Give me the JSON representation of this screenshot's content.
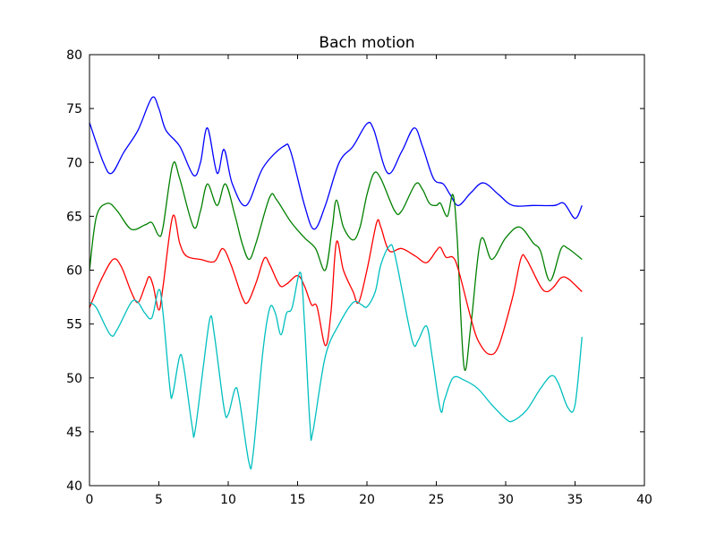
{
  "chart_data": {
    "type": "line",
    "title": "Bach motion",
    "xlabel": "",
    "ylabel": "",
    "xlim": [
      0,
      40
    ],
    "ylim": [
      40,
      80
    ],
    "xticks": [
      "0",
      "5",
      "10",
      "15",
      "20",
      "25",
      "30",
      "35",
      "40"
    ],
    "yticks": [
      "40",
      "45",
      "50",
      "55",
      "60",
      "65",
      "70",
      "75",
      "80"
    ],
    "grid": false,
    "series": [
      {
        "color": "#0000ff",
        "points": [
          [
            0,
            73.7
          ],
          [
            1,
            70
          ],
          [
            1.6,
            69
          ],
          [
            2.5,
            71
          ],
          [
            3.5,
            73
          ],
          [
            4.5,
            76
          ],
          [
            5,
            75
          ],
          [
            5.5,
            73
          ],
          [
            6.5,
            71.5
          ],
          [
            7.5,
            68.8
          ],
          [
            8,
            70
          ],
          [
            8.5,
            73.2
          ],
          [
            9.2,
            69
          ],
          [
            9.7,
            71.2
          ],
          [
            10.3,
            68
          ],
          [
            11.3,
            66
          ],
          [
            12.5,
            69.5
          ],
          [
            14,
            71.5
          ],
          [
            14.5,
            71
          ],
          [
            15.5,
            66
          ],
          [
            16.2,
            63.8
          ],
          [
            17,
            66
          ],
          [
            18,
            70
          ],
          [
            19,
            71.5
          ],
          [
            20,
            73.6
          ],
          [
            20.5,
            73
          ],
          [
            21.5,
            69
          ],
          [
            22.5,
            71
          ],
          [
            23.4,
            73.2
          ],
          [
            24,
            71.5
          ],
          [
            24.8,
            68.5
          ],
          [
            25.5,
            68
          ],
          [
            26,
            67
          ],
          [
            26.6,
            66
          ],
          [
            27.5,
            67.2
          ],
          [
            28.4,
            68.1
          ],
          [
            29.5,
            67
          ],
          [
            30.5,
            66
          ],
          [
            32,
            66
          ],
          [
            33.5,
            66
          ],
          [
            34.2,
            66.2
          ],
          [
            35,
            64.8
          ],
          [
            35.5,
            66
          ]
        ]
      },
      {
        "color": "#008000",
        "points": [
          [
            0,
            60
          ],
          [
            0.5,
            65
          ],
          [
            1.3,
            66.2
          ],
          [
            2,
            65.5
          ],
          [
            3,
            63.8
          ],
          [
            4,
            64.2
          ],
          [
            4.5,
            64.4
          ],
          [
            5,
            63.2
          ],
          [
            5.3,
            64
          ],
          [
            6,
            69.8
          ],
          [
            6.5,
            68.5
          ],
          [
            7.5,
            64
          ],
          [
            8,
            65.5
          ],
          [
            8.5,
            68
          ],
          [
            9.2,
            66
          ],
          [
            9.8,
            68
          ],
          [
            10.5,
            65
          ],
          [
            11,
            62.5
          ],
          [
            11.5,
            61
          ],
          [
            12,
            62.5
          ],
          [
            13,
            66.8
          ],
          [
            13.5,
            66.5
          ],
          [
            14.5,
            64.5
          ],
          [
            15.5,
            63
          ],
          [
            16.3,
            62
          ],
          [
            17,
            60
          ],
          [
            17.5,
            64
          ],
          [
            17.8,
            66.5
          ],
          [
            18.3,
            64
          ],
          [
            19,
            62.8
          ],
          [
            19.5,
            64
          ],
          [
            20,
            67
          ],
          [
            20.5,
            69
          ],
          [
            21,
            68.5
          ],
          [
            22,
            65.5
          ],
          [
            22.5,
            65.5
          ],
          [
            23.5,
            68
          ],
          [
            24,
            67.5
          ],
          [
            24.5,
            66.2
          ],
          [
            25,
            66
          ],
          [
            25.3,
            66.2
          ],
          [
            25.8,
            65
          ],
          [
            26.2,
            67
          ],
          [
            26.5,
            63
          ],
          [
            27,
            51
          ],
          [
            27.5,
            55
          ],
          [
            28.2,
            62.8
          ],
          [
            29,
            61
          ],
          [
            30,
            63
          ],
          [
            31,
            64
          ],
          [
            32,
            62.5
          ],
          [
            32.5,
            61.8
          ],
          [
            33.2,
            59
          ],
          [
            34,
            62
          ],
          [
            34.5,
            62
          ],
          [
            35.5,
            61
          ]
        ]
      },
      {
        "color": "#ff0000",
        "points": [
          [
            0,
            56.5
          ],
          [
            0.8,
            59
          ],
          [
            1.7,
            61
          ],
          [
            2.3,
            60.3
          ],
          [
            3,
            58
          ],
          [
            3.5,
            57
          ],
          [
            4,
            58.5
          ],
          [
            4.3,
            59.4
          ],
          [
            4.6,
            58.5
          ],
          [
            5,
            56.3
          ],
          [
            5.3,
            58.5
          ],
          [
            6,
            65
          ],
          [
            6.5,
            62.5
          ],
          [
            7,
            61.3
          ],
          [
            8,
            61
          ],
          [
            9,
            60.8
          ],
          [
            9.6,
            62
          ],
          [
            10.2,
            60.5
          ],
          [
            11,
            57.5
          ],
          [
            11.4,
            57
          ],
          [
            12,
            58.8
          ],
          [
            12.6,
            61.1
          ],
          [
            13,
            60.5
          ],
          [
            13.7,
            58.6
          ],
          [
            14.2,
            58.7
          ],
          [
            15,
            59.5
          ],
          [
            15.5,
            58.5
          ],
          [
            16,
            56.8
          ],
          [
            16.4,
            56.6
          ],
          [
            17,
            53
          ],
          [
            17.4,
            56
          ],
          [
            17.8,
            62.6
          ],
          [
            18.3,
            60
          ],
          [
            19,
            58
          ],
          [
            19.4,
            57
          ],
          [
            20,
            60
          ],
          [
            20.7,
            64.4
          ],
          [
            21,
            64
          ],
          [
            21.6,
            61.8
          ],
          [
            22.5,
            62
          ],
          [
            23.5,
            61.3
          ],
          [
            24.3,
            60.7
          ],
          [
            25,
            61.8
          ],
          [
            25.3,
            62.1
          ],
          [
            25.7,
            61.2
          ],
          [
            26.2,
            61.2
          ],
          [
            26.6,
            60
          ],
          [
            27.5,
            55.5
          ],
          [
            28,
            53.5
          ],
          [
            28.8,
            52.2
          ],
          [
            29.5,
            53
          ],
          [
            30.5,
            57.5
          ],
          [
            31.1,
            61.1
          ],
          [
            31.5,
            61
          ],
          [
            32.5,
            58.5
          ],
          [
            33,
            58
          ],
          [
            33.5,
            58.5
          ],
          [
            34,
            59.3
          ],
          [
            34.5,
            59.2
          ],
          [
            35.5,
            58
          ]
        ]
      },
      {
        "color": "#00bfbf",
        "points": [
          [
            0,
            57
          ],
          [
            0.5,
            56.5
          ],
          [
            1.5,
            54
          ],
          [
            2,
            54.5
          ],
          [
            3,
            57
          ],
          [
            3.5,
            57
          ],
          [
            4,
            56
          ],
          [
            4.5,
            55.6
          ],
          [
            5,
            58.2
          ],
          [
            5.3,
            56
          ],
          [
            5.8,
            49
          ],
          [
            6,
            48.5
          ],
          [
            6.5,
            52
          ],
          [
            6.8,
            51
          ],
          [
            7.4,
            45.5
          ],
          [
            7.6,
            45
          ],
          [
            8.2,
            51
          ],
          [
            8.7,
            55.6
          ],
          [
            9,
            54
          ],
          [
            9.7,
            47.2
          ],
          [
            10,
            46.6
          ],
          [
            10.5,
            49
          ],
          [
            10.8,
            48
          ],
          [
            11.5,
            42.1
          ],
          [
            11.8,
            43
          ],
          [
            12.5,
            52.5
          ],
          [
            13,
            56.5
          ],
          [
            13.4,
            56
          ],
          [
            13.8,
            54
          ],
          [
            14.2,
            56
          ],
          [
            14.6,
            56.5
          ],
          [
            15.2,
            59.8
          ],
          [
            15.5,
            55
          ],
          [
            15.9,
            45.5
          ],
          [
            16.1,
            45
          ],
          [
            17,
            52
          ],
          [
            18,
            55
          ],
          [
            19,
            57
          ],
          [
            19.6,
            56.8
          ],
          [
            20,
            56.6
          ],
          [
            20.6,
            58
          ],
          [
            21,
            60.5
          ],
          [
            21.6,
            62.2
          ],
          [
            22,
            61.5
          ],
          [
            23,
            55
          ],
          [
            23.4,
            53
          ],
          [
            23.7,
            53.5
          ],
          [
            24.3,
            54.8
          ],
          [
            24.7,
            52
          ],
          [
            25.3,
            47
          ],
          [
            25.6,
            48
          ],
          [
            26.2,
            50
          ],
          [
            27,
            49.8
          ],
          [
            28,
            49
          ],
          [
            29,
            47.5
          ],
          [
            30,
            46.2
          ],
          [
            30.5,
            46
          ],
          [
            31.5,
            47
          ],
          [
            32.5,
            49
          ],
          [
            33.3,
            50.2
          ],
          [
            33.8,
            49.5
          ],
          [
            34.5,
            47.2
          ],
          [
            35,
            47.5
          ],
          [
            35.5,
            53.8
          ]
        ]
      }
    ]
  }
}
